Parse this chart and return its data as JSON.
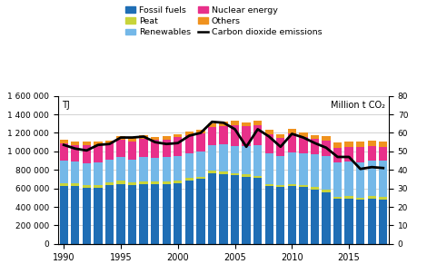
{
  "years": [
    1990,
    1991,
    1992,
    1993,
    1994,
    1995,
    1996,
    1997,
    1998,
    1999,
    2000,
    2001,
    2002,
    2003,
    2004,
    2005,
    2006,
    2007,
    2008,
    2009,
    2010,
    2011,
    2012,
    2013,
    2014,
    2015,
    2016,
    2017,
    2018
  ],
  "fossil_fuels": [
    630000,
    625000,
    605000,
    610000,
    640000,
    650000,
    635000,
    650000,
    645000,
    645000,
    655000,
    685000,
    700000,
    760000,
    755000,
    740000,
    720000,
    710000,
    625000,
    615000,
    625000,
    615000,
    590000,
    560000,
    490000,
    490000,
    475000,
    490000,
    480000
  ],
  "peat": [
    30000,
    28000,
    27000,
    29000,
    28000,
    30000,
    29000,
    29000,
    27000,
    26000,
    27000,
    28000,
    27000,
    30000,
    27000,
    27000,
    29000,
    28000,
    24000,
    20000,
    25000,
    22000,
    23000,
    24000,
    22000,
    24000,
    25000,
    27000,
    28000
  ],
  "renewables": [
    245000,
    240000,
    240000,
    240000,
    240000,
    255000,
    250000,
    265000,
    255000,
    265000,
    270000,
    265000,
    270000,
    280000,
    295000,
    295000,
    305000,
    325000,
    330000,
    310000,
    340000,
    345000,
    355000,
    370000,
    370000,
    375000,
    385000,
    385000,
    390000
  ],
  "nuclear": [
    185000,
    175000,
    195000,
    190000,
    175000,
    190000,
    195000,
    190000,
    195000,
    190000,
    200000,
    195000,
    195000,
    195000,
    200000,
    225000,
    215000,
    220000,
    210000,
    200000,
    205000,
    175000,
    165000,
    165000,
    160000,
    160000,
    165000,
    155000,
    150000
  ],
  "others": [
    40000,
    38000,
    37000,
    38000,
    37000,
    37000,
    37000,
    37000,
    37000,
    37000,
    37000,
    37000,
    38000,
    40000,
    42000,
    45000,
    44000,
    45000,
    43000,
    40000,
    45000,
    45000,
    45000,
    50000,
    52000,
    55000,
    58000,
    60000,
    62000
  ],
  "co2": [
    53.5,
    51.5,
    50.5,
    53.5,
    54.0,
    57.5,
    57.5,
    58.0,
    55.0,
    54.0,
    54.5,
    58.5,
    60.0,
    66.0,
    65.5,
    62.0,
    52.5,
    62.0,
    58.0,
    52.5,
    59.5,
    57.5,
    54.5,
    52.0,
    47.0,
    47.0,
    40.5,
    41.5,
    41.0
  ],
  "colors": {
    "fossil_fuels": "#1f6eb5",
    "peat": "#c8d43a",
    "renewables": "#74b8e8",
    "nuclear": "#e8308a",
    "others": "#f0921e"
  },
  "co2_color": "#000000",
  "ylim_left": [
    0,
    1600000
  ],
  "ylim_right": [
    0,
    80
  ],
  "yticks_left": [
    0,
    200000,
    400000,
    600000,
    800000,
    1000000,
    1200000,
    1400000,
    1600000
  ],
  "yticks_right": [
    0,
    10,
    20,
    30,
    40,
    50,
    60,
    70,
    80
  ],
  "ylabel_left": "TJ",
  "ylabel_right": "Million t CO₂",
  "xticks": [
    1990,
    1995,
    2000,
    2005,
    2010,
    2015
  ],
  "legend_labels": [
    "Fossil fuels",
    "Peat",
    "Renewables",
    "Nuclear energy",
    "Others",
    "Carbon dioxide emissions"
  ],
  "legend_colors": [
    "#1f6eb5",
    "#c8d43a",
    "#74b8e8",
    "#e8308a",
    "#f0921e",
    "#000000"
  ],
  "grid_color": "#c0c0c0",
  "background_color": "#ffffff"
}
